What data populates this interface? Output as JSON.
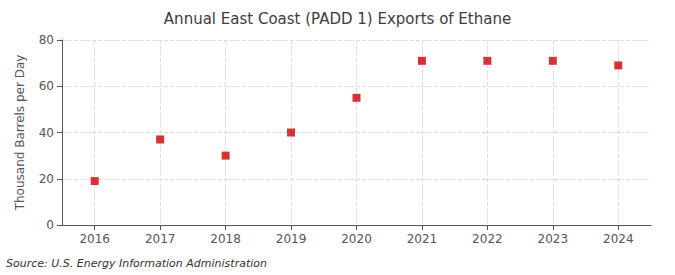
{
  "chart_data": {
    "type": "scatter",
    "title": "Annual East Coast (PADD 1) Exports of Ethane",
    "ylabel": "Thousand Barrels per Day",
    "source": "Source: U.S. Energy Information Administration",
    "x": [
      2016,
      2017,
      2018,
      2019,
      2020,
      2021,
      2022,
      2023,
      2024
    ],
    "values": [
      19,
      37,
      30,
      40,
      55,
      71,
      71,
      71,
      69
    ],
    "color": "#CC0000",
    "marker": "square",
    "xlim": [
      2015.5,
      2024.5
    ],
    "xticks": [
      2016,
      2017,
      2018,
      2019,
      2020,
      2021,
      2022,
      2023,
      2024
    ],
    "ylim": [
      0,
      80
    ],
    "yticks": [
      0,
      20,
      40,
      60,
      80
    ],
    "grid": true
  }
}
